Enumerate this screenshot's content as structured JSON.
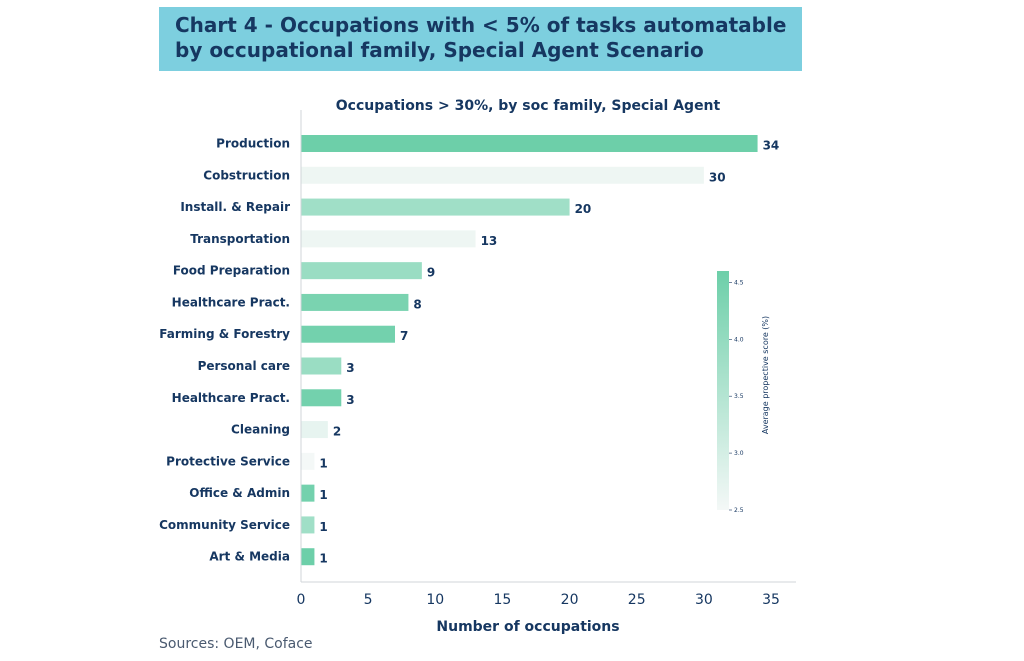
{
  "header": {
    "title_line1": "Chart 4 - Occupations with < 5% of tasks automatable",
    "title_line2": "by occupational family, Special Agent Scenario",
    "background_color": "#7dcfdf"
  },
  "footer": {
    "source": "Sources: OEM, Coface"
  },
  "chart_data": {
    "type": "bar",
    "orientation": "horizontal",
    "title": "Occupations > 30%, by soc family, Special Agent",
    "xlabel": "Number of occupations",
    "ylabel": "",
    "xlim": [
      0,
      35
    ],
    "xticks": [
      0,
      5,
      10,
      15,
      20,
      25,
      30,
      35
    ],
    "categories": [
      "Production",
      "Cobstruction",
      "Install. & Repair",
      "Transportation",
      "Food Preparation",
      "Healthcare Pract.",
      "Farming & Forestry",
      "Personal care",
      "Healthcare Pract.",
      "Cleaning",
      "Protective Service",
      "Office & Admin",
      "Community Service",
      "Art & Media"
    ],
    "values": [
      34,
      30,
      20,
      13,
      9,
      8,
      7,
      3,
      3,
      2,
      1,
      1,
      1,
      1
    ],
    "value_labels": [
      "34",
      "30",
      "20",
      "13",
      "9",
      "8",
      "7",
      "3",
      "3",
      "2",
      "1",
      "1",
      "1",
      "1"
    ],
    "color_scores": [
      4.6,
      2.6,
      3.8,
      2.6,
      3.9,
      4.4,
      4.5,
      3.9,
      4.5,
      2.7,
      2.5,
      4.5,
      3.8,
      4.6
    ],
    "colorbar": {
      "title": "Average propective score (%)",
      "min": 2.5,
      "max": 4.6,
      "ticks": [
        "4.5",
        "4.0",
        "3.5",
        "3.0",
        "2.5"
      ],
      "tick_values": [
        4.5,
        4.0,
        3.5,
        3.0,
        2.5
      ],
      "color_low": "#f4f8f7",
      "color_high": "#6dcfa9"
    },
    "grid": false,
    "legend": "colorbar right"
  }
}
